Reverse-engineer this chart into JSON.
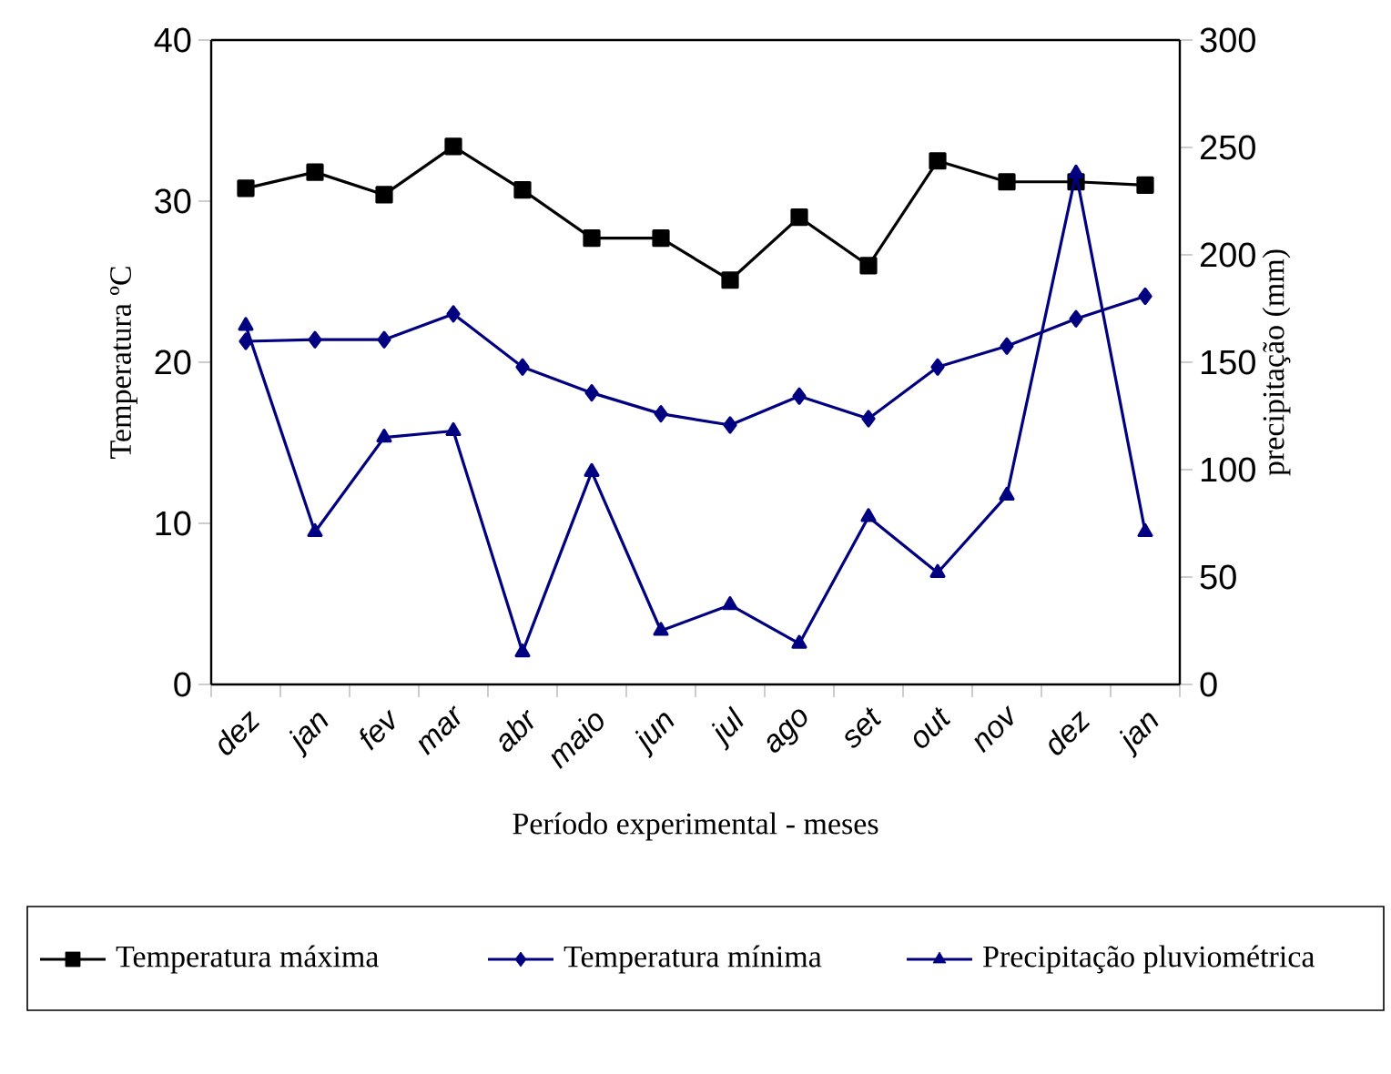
{
  "chart_data": {
    "type": "line",
    "xlabel": "Período experimental - meses",
    "ylabel": "Temperatura ºC",
    "y2label": "precipitação (mm)",
    "categories": [
      "dez",
      "jan",
      "fev",
      "mar",
      "abr",
      "maio",
      "jun",
      "jul",
      "ago",
      "set",
      "out",
      "nov",
      "dez",
      "jan"
    ],
    "series": [
      {
        "name": "Temperatura máxima",
        "color": "#000000",
        "marker": "square",
        "values": [
          30.8,
          31.8,
          30.4,
          33.4,
          30.7,
          27.7,
          27.7,
          25.1,
          29.0,
          26.0,
          32.5,
          31.2,
          31.2,
          31.0
        ]
      },
      {
        "name": "Temperatura mínima",
        "color": "#000080",
        "marker": "diamond",
        "values": [
          21.3,
          21.4,
          21.4,
          23.0,
          19.7,
          18.1,
          16.8,
          16.1,
          17.9,
          16.5,
          19.7,
          21.0,
          22.7,
          24.1
        ]
      },
      {
        "name": "Precipitação pluviométrica",
        "color": "#000080",
        "marker": "triangle",
        "axis": "y2",
        "values": [
          167,
          71,
          115,
          118,
          15,
          99,
          25,
          37,
          19,
          78,
          52,
          88,
          238,
          71
        ]
      }
    ],
    "ylim": [
      0,
      40
    ],
    "yticks": [
      0,
      10,
      20,
      30,
      40
    ],
    "y2lim": [
      0,
      300
    ],
    "y2ticks": [
      0,
      50,
      100,
      150,
      200,
      250,
      300
    ],
    "grid": false,
    "legend": "bottom",
    "line_style": "solid"
  }
}
